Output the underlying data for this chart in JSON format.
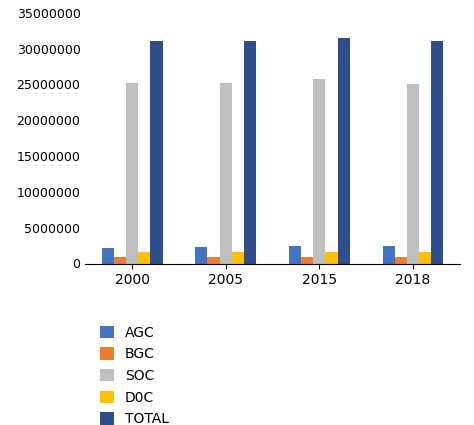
{
  "years": [
    "2000",
    "2005",
    "2015",
    "2018"
  ],
  "series": {
    "AGC": [
      2200000,
      2300000,
      2500000,
      2400000
    ],
    "BGC": [
      900000,
      950000,
      900000,
      900000
    ],
    "SOC": [
      25200000,
      25200000,
      25700000,
      25100000
    ],
    "D0C": [
      1600000,
      1650000,
      1600000,
      1650000
    ],
    "TOTAL": [
      31000000,
      31000000,
      31500000,
      31000000
    ]
  },
  "colors": {
    "AGC": "#4472c4",
    "BGC": "#ed7d31",
    "SOC": "#bfbfbf",
    "D0C": "#ffc000",
    "TOTAL": "#2e4d8a"
  },
  "ylim": [
    0,
    35000000
  ],
  "yticks": [
    0,
    5000000,
    10000000,
    15000000,
    20000000,
    25000000,
    30000000,
    35000000
  ],
  "bar_width": 0.13,
  "legend_labels": [
    "AGC",
    "BGC",
    "SOC",
    "D0C",
    "TOTAL"
  ],
  "figure_bg": "#f5f5f5"
}
